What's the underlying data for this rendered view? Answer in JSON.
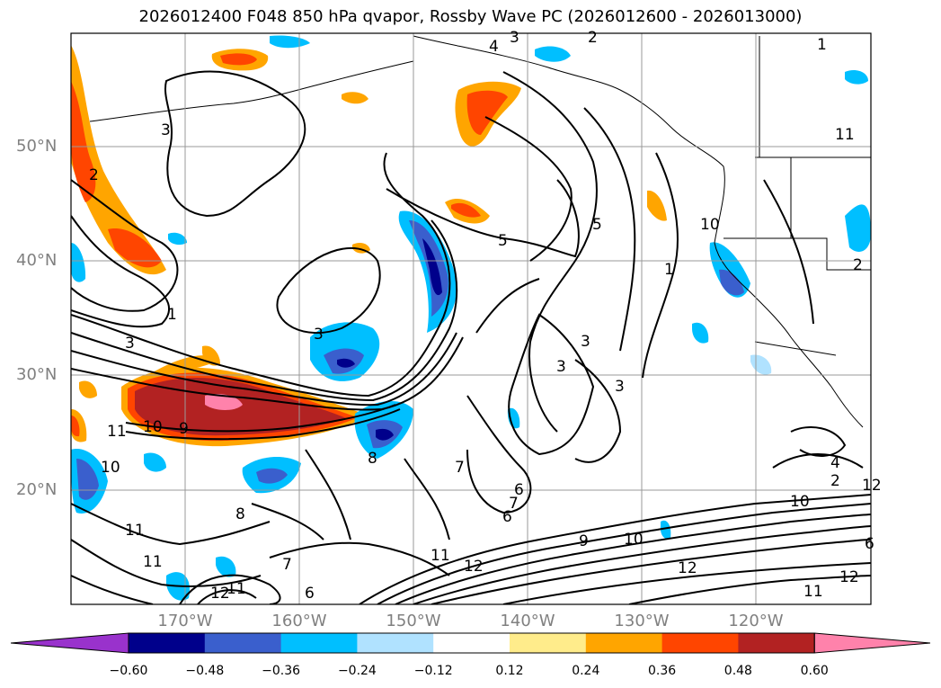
{
  "title": "2026012400 F048 850 hPa qvapor, Rossby Wave PC (2026012600 - 2026013000)",
  "latitude_labels": [
    "50°N",
    "40°N",
    "30°N",
    "20°N"
  ],
  "longitude_labels": [
    "170°W",
    "160°W",
    "150°W",
    "140°W",
    "130°W",
    "120°W"
  ],
  "colorbar": {
    "tick_labels": [
      "−0.60",
      "−0.48",
      "−0.36",
      "−0.24",
      "−0.12",
      "0.12",
      "0.24",
      "0.36",
      "0.48",
      "0.60"
    ],
    "colors": [
      "#9932cc",
      "#00008b",
      "#3a5fcd",
      "#00bfff",
      "#b0e2ff",
      "#ffffff",
      "#ffec8b",
      "#ffa500",
      "#ff4500",
      "#b22222",
      "#ff82ab"
    ]
  },
  "contour_labels": [
    "3",
    "4",
    "2",
    "1",
    "11",
    "3",
    "2",
    "3",
    "5",
    "5",
    "10",
    "1",
    "2",
    "1",
    "3",
    "3",
    "3",
    "3",
    "10",
    "9",
    "11",
    "8",
    "10",
    "6",
    "11",
    "11",
    "8",
    "7",
    "6",
    "12",
    "11",
    "12",
    "7",
    "6",
    "7",
    "9",
    "10",
    "11",
    "12",
    "12",
    "11",
    "12",
    "10",
    "4",
    "2",
    "6"
  ],
  "colors": {
    "frame": "#000000",
    "grid": "#999999",
    "contour": "#000000",
    "axis_label": "#808080"
  }
}
